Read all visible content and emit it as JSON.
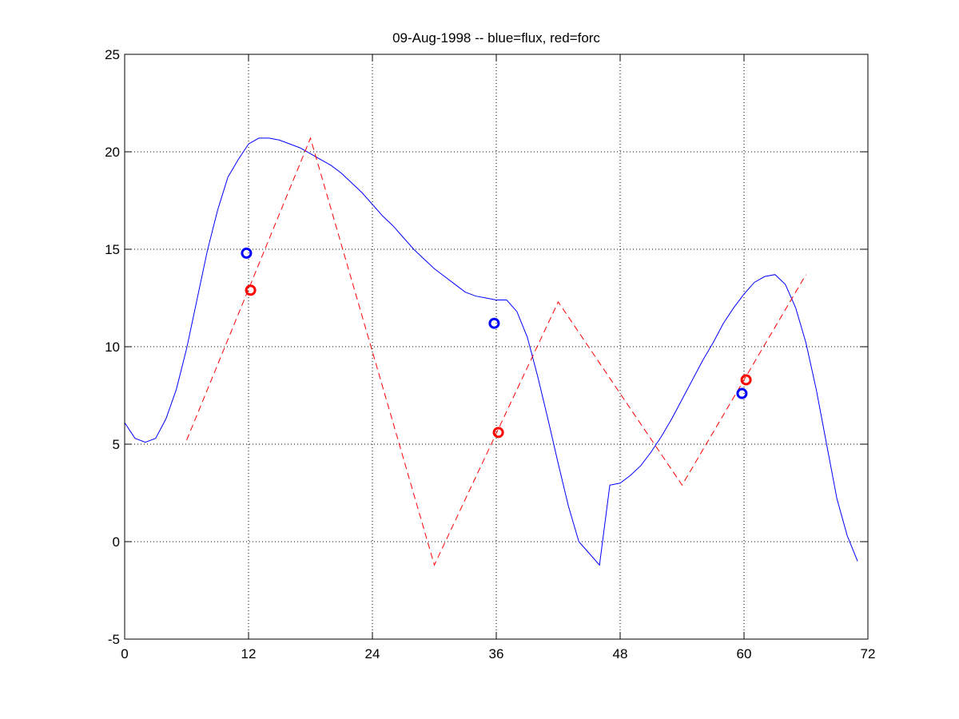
{
  "chart_data": {
    "type": "line",
    "title": "09-Aug-1998 -- blue=flux, red=forc",
    "xlim": [
      0,
      72
    ],
    "ylim": [
      -5,
      25
    ],
    "xticks": [
      0,
      12,
      24,
      36,
      48,
      60,
      72
    ],
    "yticks": [
      -5,
      0,
      5,
      10,
      15,
      20,
      25
    ],
    "x_tick_labels": [
      "0",
      "12",
      "24",
      "36",
      "48",
      "60",
      "72"
    ],
    "y_tick_labels": [
      "-5",
      "0",
      "5",
      "10",
      "15",
      "20",
      "25"
    ],
    "grid": true,
    "colors": {
      "flux": "#0000ff",
      "forc": "#ff0000"
    },
    "series": [
      {
        "style": "solid",
        "color": "#0000ff",
        "x": [
          0,
          1,
          2,
          3,
          4,
          5,
          6,
          7,
          8,
          9,
          10,
          11,
          12,
          13,
          14,
          15,
          16,
          17,
          18,
          19,
          20,
          21,
          22,
          23,
          24,
          25,
          26,
          27,
          28,
          29,
          30,
          31,
          32,
          33,
          34,
          35,
          36,
          37,
          38,
          39,
          40,
          41,
          42,
          43,
          44,
          45,
          46,
          47,
          48,
          49,
          50,
          51,
          52,
          53,
          54,
          55,
          56,
          57,
          58,
          59,
          60,
          61,
          62,
          63,
          64,
          65,
          66,
          67,
          68,
          69,
          70,
          71
        ],
        "values": [
          6.1,
          5.3,
          5.1,
          5.3,
          6.3,
          7.8,
          9.9,
          12.4,
          14.9,
          17.0,
          18.7,
          19.6,
          20.4,
          20.7,
          20.7,
          20.6,
          20.4,
          20.2,
          19.9,
          19.6,
          19.3,
          18.9,
          18.4,
          17.9,
          17.3,
          16.7,
          16.2,
          15.6,
          15.0,
          14.5,
          14.0,
          13.6,
          13.2,
          12.8,
          12.6,
          12.5,
          12.4,
          12.4,
          11.8,
          10.5,
          8.5,
          6.3,
          4.0,
          1.8,
          0.0,
          -0.6,
          -1.2,
          2.9,
          3.0,
          3.4,
          3.9,
          4.6,
          5.4,
          6.3,
          7.3,
          8.3,
          9.3,
          10.2,
          11.2,
          12.0,
          12.7,
          13.3,
          13.6,
          13.7,
          13.2,
          12.0,
          10.2,
          7.8,
          5.0,
          2.2,
          0.3,
          -1.0
        ]
      },
      {
        "style": "dashed",
        "color": "#ff0000",
        "x": [
          6,
          18,
          30,
          42,
          54,
          66
        ],
        "values": [
          5.2,
          20.7,
          -1.2,
          12.3,
          2.9,
          13.7
        ]
      }
    ],
    "markers": [
      {
        "series": "flux",
        "color": "#0000ff",
        "x": 11.8,
        "y": 14.8
      },
      {
        "series": "flux",
        "color": "#0000ff",
        "x": 35.8,
        "y": 11.2
      },
      {
        "series": "flux",
        "color": "#0000ff",
        "x": 59.8,
        "y": 7.6
      },
      {
        "series": "forc",
        "color": "#ff0000",
        "x": 12.2,
        "y": 12.9
      },
      {
        "series": "forc",
        "color": "#ff0000",
        "x": 36.2,
        "y": 5.6
      },
      {
        "series": "forc",
        "color": "#ff0000",
        "x": 60.2,
        "y": 8.3
      }
    ]
  }
}
